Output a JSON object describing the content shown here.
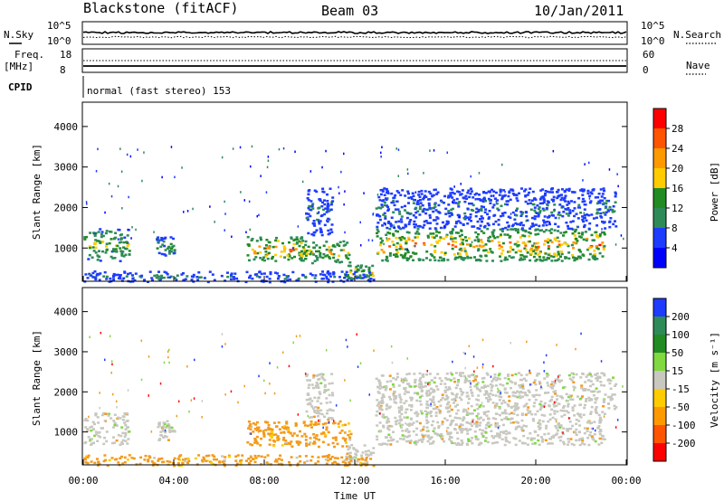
{
  "header": {
    "station": "Blackstone (fitACF)",
    "beam": "Beam 03",
    "date": "10/Jan/2011"
  },
  "top_panels": {
    "nsky_label": "N.Sky",
    "nsearch_label": "N.Search",
    "noise_ticks_left": [
      "10^5",
      "10^0"
    ],
    "noise_ticks_right": [
      "10^5",
      "10^0"
    ],
    "freq_label": "Freq.",
    "freq_unit": "[MHz]",
    "freq_ticks": [
      "18",
      "8"
    ],
    "nave_label": "Nave",
    "nave_ticks": [
      "60",
      "0"
    ],
    "cpid_label": "CPID",
    "cpid_value": "normal (fast stereo) 153"
  },
  "chart_data": [
    {
      "type": "heatmap",
      "name": "power",
      "xlabel": "Time UT",
      "ylabel": "Slant Range [km]",
      "xlim": [
        0,
        24
      ],
      "ylim": [
        180,
        4600
      ],
      "xticks": [
        "00:00",
        "04:00",
        "08:00",
        "12:00",
        "16:00",
        "20:00",
        "00:00"
      ],
      "yticks": [
        1000,
        2000,
        3000,
        4000
      ],
      "colorbar": {
        "label": "Power [dB]",
        "ticks": [
          "28",
          "24",
          "20",
          "16",
          "12",
          "8",
          "4"
        ],
        "colors": [
          "#ff0000",
          "#ff5500",
          "#ff9900",
          "#ffcc00",
          "#228b22",
          "#2e8b57",
          "#1e3cff",
          "#0000ff"
        ]
      },
      "features": [
        {
          "t0": 0.0,
          "t1": 2.0,
          "r0": 700,
          "r1": 1500,
          "level": 4
        },
        {
          "t0": 3.2,
          "t1": 4.0,
          "r0": 800,
          "r1": 1300,
          "level": 3
        },
        {
          "t0": 7.2,
          "t1": 9.8,
          "r0": 700,
          "r1": 1300,
          "level": 6
        },
        {
          "t0": 9.5,
          "t1": 11.8,
          "r0": 650,
          "r1": 1200,
          "level": 5
        },
        {
          "t0": 9.8,
          "t1": 11.0,
          "r0": 1300,
          "r1": 2500,
          "level": 2
        },
        {
          "t0": 11.5,
          "t1": 12.8,
          "r0": 250,
          "r1": 600,
          "level": 5
        },
        {
          "t0": 12.9,
          "t1": 23.0,
          "r0": 700,
          "r1": 1500,
          "level": 6
        },
        {
          "t0": 12.9,
          "t1": 23.5,
          "r0": 1500,
          "r1": 2500,
          "level": 2
        },
        {
          "t0": 0.0,
          "t1": 12.8,
          "r0": 180,
          "r1": 450,
          "level": 2
        }
      ]
    },
    {
      "type": "heatmap",
      "name": "velocity",
      "xlabel": "Time UT",
      "ylabel": "Slant Range [km]",
      "xlim": [
        0,
        24
      ],
      "ylim": [
        180,
        4600
      ],
      "xticks": [
        "00:00",
        "04:00",
        "08:00",
        "12:00",
        "16:00",
        "20:00",
        "00:00"
      ],
      "yticks": [
        1000,
        2000,
        3000,
        4000
      ],
      "colorbar": {
        "label": "Velocity [m s⁻¹]",
        "ticks": [
          "200",
          "100",
          "50",
          "15",
          "-15",
          "-50",
          "-100",
          "-200"
        ],
        "colors": [
          "#1e3cff",
          "#2e8b57",
          "#228b22",
          "#7fd93f",
          "#c8c8c0",
          "#ffcc00",
          "#ff9900",
          "#ff5500",
          "#ff0000"
        ]
      },
      "features": [
        {
          "t0": 0.0,
          "t1": 2.0,
          "r0": 700,
          "r1": 1500,
          "cls": "gray"
        },
        {
          "t0": 3.2,
          "t1": 4.0,
          "r0": 800,
          "r1": 1300,
          "cls": "gray"
        },
        {
          "t0": 7.2,
          "t1": 11.8,
          "r0": 650,
          "r1": 1300,
          "cls": "orange"
        },
        {
          "t0": 9.8,
          "t1": 11.0,
          "r0": 1300,
          "r1": 2500,
          "cls": "gray"
        },
        {
          "t0": 11.5,
          "t1": 12.8,
          "r0": 250,
          "r1": 700,
          "cls": "gray"
        },
        {
          "t0": 12.9,
          "t1": 23.0,
          "r0": 700,
          "r1": 1500,
          "cls": "gray"
        },
        {
          "t0": 12.9,
          "t1": 23.5,
          "r0": 1500,
          "r1": 2500,
          "cls": "gray"
        },
        {
          "t0": 0.0,
          "t1": 12.8,
          "r0": 180,
          "r1": 450,
          "cls": "orange"
        }
      ]
    }
  ]
}
